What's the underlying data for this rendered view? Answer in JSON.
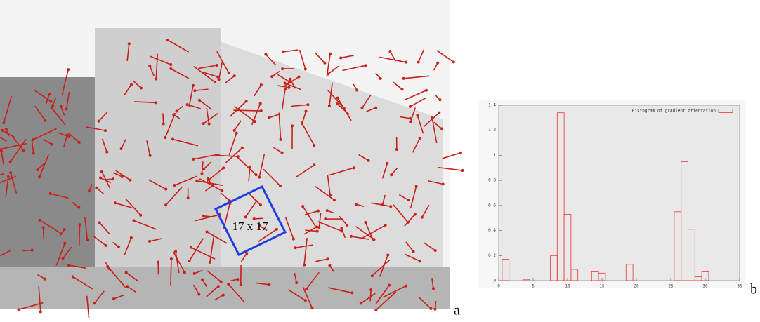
{
  "chart_data": {
    "type": "bar",
    "legend": "Histogram of gradient orientation",
    "x": [
      1,
      4,
      8,
      9,
      10,
      11,
      14,
      15,
      19,
      26,
      27,
      28,
      29,
      30
    ],
    "values": [
      0.17,
      0.01,
      0.2,
      1.34,
      0.53,
      0.09,
      0.07,
      0.06,
      0.13,
      0.55,
      0.95,
      0.41,
      0.03,
      0.07
    ],
    "color": "#ee3333",
    "xlim": [
      0,
      35
    ],
    "xticks": [
      0,
      5,
      10,
      15,
      20,
      25,
      30,
      35
    ],
    "ylim": [
      0,
      1.4
    ],
    "yticks": [
      0,
      0.2,
      0.4,
      0.6,
      0.8,
      1,
      1.2,
      1.4
    ],
    "legend_position": "top-right"
  },
  "image": {
    "window_label": "17 x 17"
  },
  "panel_labels": [
    "a",
    "b"
  ]
}
